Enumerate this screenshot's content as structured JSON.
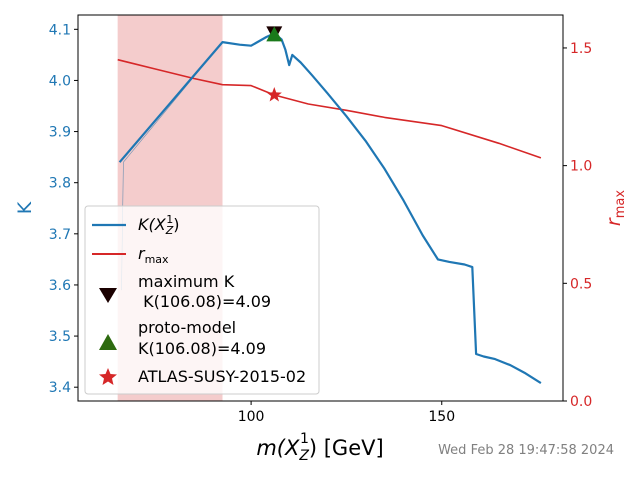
{
  "chart_data": {
    "type": "line",
    "x_axis": {
      "label_prefix": "m(X",
      "label_sub": "Z",
      "label_sup": "1",
      "label_suffix": ") [GeV]",
      "range": [
        54.6,
        181.8
      ],
      "ticks": [
        100,
        150
      ]
    },
    "y_axis_left": {
      "label": "K",
      "range": [
        3.373,
        4.128
      ],
      "ticks": [
        3.4,
        3.5,
        3.6,
        3.7,
        3.8,
        3.9,
        4.0,
        4.1
      ],
      "color": "#1f77b4"
    },
    "y_axis_right": {
      "label_main": "r",
      "label_sub": "max",
      "range": [
        0.0,
        1.64
      ],
      "ticks": [
        0.0,
        0.5,
        1.0,
        1.5
      ],
      "color": "#d62728"
    },
    "series": [
      {
        "name_main": "K(X",
        "name_sub": "Z",
        "name_sup": "1",
        "name_suffix": ")",
        "axis": "left",
        "color": "#1f77b4",
        "points": [
          [
            65.5,
            3.84
          ],
          [
            92.5,
            4.075
          ],
          [
            97,
            4.07
          ],
          [
            100,
            4.068
          ],
          [
            104,
            4.085
          ],
          [
            106.08,
            4.092
          ],
          [
            108,
            4.08
          ],
          [
            109,
            4.06
          ],
          [
            110,
            4.03
          ],
          [
            110.8,
            4.05
          ],
          [
            113,
            4.035
          ],
          [
            116,
            4.01
          ],
          [
            120,
            3.975
          ],
          [
            125,
            3.93
          ],
          [
            130,
            3.882
          ],
          [
            135,
            3.827
          ],
          [
            140,
            3.765
          ],
          [
            145,
            3.697
          ],
          [
            149,
            3.65
          ],
          [
            152,
            3.645
          ],
          [
            156,
            3.64
          ],
          [
            158,
            3.635
          ],
          [
            159,
            3.465
          ],
          [
            161,
            3.46
          ],
          [
            164,
            3.455
          ],
          [
            168,
            3.443
          ],
          [
            172,
            3.427
          ],
          [
            176,
            3.408
          ]
        ]
      },
      {
        "name_main": "r",
        "name_sub": "max",
        "axis": "right",
        "color": "#d62728",
        "points": [
          [
            65,
            1.45
          ],
          [
            75,
            1.41
          ],
          [
            85,
            1.37
          ],
          [
            92.5,
            1.344
          ],
          [
            100,
            1.34
          ],
          [
            106.08,
            1.3
          ],
          [
            115,
            1.262
          ],
          [
            125,
            1.235
          ],
          [
            135,
            1.205
          ],
          [
            150,
            1.17
          ],
          [
            165,
            1.095
          ],
          [
            176,
            1.033
          ]
        ]
      },
      {
        "name": "light line",
        "axis": "left",
        "color": "#6a8fb0",
        "points": [
          [
            66,
            3.59
          ],
          [
            66.5,
            3.84
          ],
          [
            92.5,
            4.075
          ]
        ]
      }
    ],
    "shaded_region": {
      "x_from": 65,
      "x_to": 92.5,
      "color": "#f4cccc"
    },
    "markers": [
      {
        "label_line1": "maximum K",
        "label_line2": " K(106.08)=4.09",
        "shape": "triangle-down",
        "color": "#1a0000",
        "x": 106.08,
        "axis": "left",
        "y": 4.09
      },
      {
        "label_line1": "proto-model",
        "label_line2": "K(106.08)=4.09",
        "shape": "triangle-up",
        "color": "#1a7a1a",
        "x": 106.08,
        "axis": "left",
        "y": 4.09
      },
      {
        "label": "ATLAS-SUSY-2015-02",
        "shape": "star",
        "color": "#d62728",
        "x": 106.08,
        "axis": "right",
        "y": 1.3
      }
    ],
    "legend_position": "lower-left"
  },
  "timestamp": "Wed Feb 28 19:47:58 2024"
}
